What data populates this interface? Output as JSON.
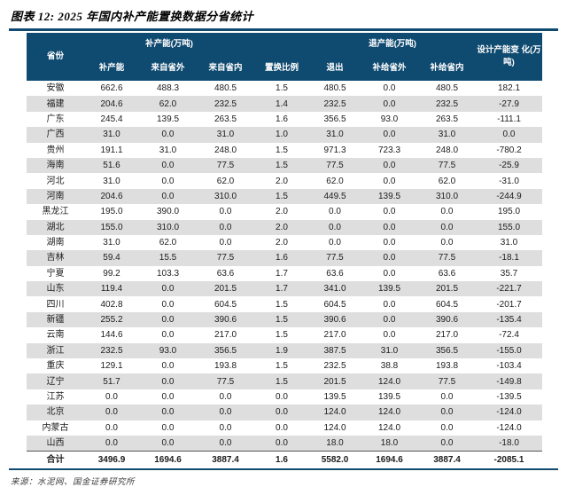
{
  "title": "图表 12: 2025 年国内补产能置换数据分省统计",
  "colors": {
    "header_bg": "#0f4a70",
    "rule": "#0f4a70",
    "stripe": "#dedede"
  },
  "table": {
    "header": {
      "province": "省份",
      "group_add": "补产能(万吨)",
      "group_retire": "退产能(万吨)",
      "design_change": "设计产能变 化(万吨)"
    },
    "sub_headers": [
      "补产能",
      "来自省外",
      "来自省内",
      "置换比例",
      "退出",
      "补给省外",
      "补给省内"
    ],
    "rows": [
      {
        "province": "安徽",
        "values": [
          "662.6",
          "488.3",
          "480.5",
          "1.5",
          "480.5",
          "0.0",
          "480.5",
          "182.1"
        ]
      },
      {
        "province": "福建",
        "values": [
          "204.6",
          "62.0",
          "232.5",
          "1.4",
          "232.5",
          "0.0",
          "232.5",
          "-27.9"
        ]
      },
      {
        "province": "广东",
        "values": [
          "245.4",
          "139.5",
          "263.5",
          "1.6",
          "356.5",
          "93.0",
          "263.5",
          "-111.1"
        ]
      },
      {
        "province": "广西",
        "values": [
          "31.0",
          "0.0",
          "31.0",
          "1.0",
          "31.0",
          "0.0",
          "31.0",
          "0.0"
        ]
      },
      {
        "province": "贵州",
        "values": [
          "191.1",
          "31.0",
          "248.0",
          "1.5",
          "971.3",
          "723.3",
          "248.0",
          "-780.2"
        ]
      },
      {
        "province": "海南",
        "values": [
          "51.6",
          "0.0",
          "77.5",
          "1.5",
          "77.5",
          "0.0",
          "77.5",
          "-25.9"
        ]
      },
      {
        "province": "河北",
        "values": [
          "31.0",
          "0.0",
          "62.0",
          "2.0",
          "62.0",
          "0.0",
          "62.0",
          "-31.0"
        ]
      },
      {
        "province": "河南",
        "values": [
          "204.6",
          "0.0",
          "310.0",
          "1.5",
          "449.5",
          "139.5",
          "310.0",
          "-244.9"
        ]
      },
      {
        "province": "黑龙江",
        "values": [
          "195.0",
          "390.0",
          "0.0",
          "2.0",
          "0.0",
          "0.0",
          "0.0",
          "195.0"
        ]
      },
      {
        "province": "湖北",
        "values": [
          "155.0",
          "310.0",
          "0.0",
          "2.0",
          "0.0",
          "0.0",
          "0.0",
          "155.0"
        ]
      },
      {
        "province": "湖南",
        "values": [
          "31.0",
          "62.0",
          "0.0",
          "2.0",
          "0.0",
          "0.0",
          "0.0",
          "31.0"
        ]
      },
      {
        "province": "吉林",
        "values": [
          "59.4",
          "15.5",
          "77.5",
          "1.6",
          "77.5",
          "0.0",
          "77.5",
          "-18.1"
        ]
      },
      {
        "province": "宁夏",
        "values": [
          "99.2",
          "103.3",
          "63.6",
          "1.7",
          "63.6",
          "0.0",
          "63.6",
          "35.7"
        ]
      },
      {
        "province": "山东",
        "values": [
          "119.4",
          "0.0",
          "201.5",
          "1.7",
          "341.0",
          "139.5",
          "201.5",
          "-221.7"
        ]
      },
      {
        "province": "四川",
        "values": [
          "402.8",
          "0.0",
          "604.5",
          "1.5",
          "604.5",
          "0.0",
          "604.5",
          "-201.7"
        ]
      },
      {
        "province": "新疆",
        "values": [
          "255.2",
          "0.0",
          "390.6",
          "1.5",
          "390.6",
          "0.0",
          "390.6",
          "-135.4"
        ]
      },
      {
        "province": "云南",
        "values": [
          "144.6",
          "0.0",
          "217.0",
          "1.5",
          "217.0",
          "0.0",
          "217.0",
          "-72.4"
        ]
      },
      {
        "province": "浙江",
        "values": [
          "232.5",
          "93.0",
          "356.5",
          "1.9",
          "387.5",
          "31.0",
          "356.5",
          "-155.0"
        ]
      },
      {
        "province": "重庆",
        "values": [
          "129.1",
          "0.0",
          "193.8",
          "1.5",
          "232.5",
          "38.8",
          "193.8",
          "-103.4"
        ]
      },
      {
        "province": "辽宁",
        "values": [
          "51.7",
          "0.0",
          "77.5",
          "1.5",
          "201.5",
          "124.0",
          "77.5",
          "-149.8"
        ]
      },
      {
        "province": "江苏",
        "values": [
          "0.0",
          "0.0",
          "0.0",
          "0.0",
          "139.5",
          "139.5",
          "0.0",
          "-139.5"
        ]
      },
      {
        "province": "北京",
        "values": [
          "0.0",
          "0.0",
          "0.0",
          "0.0",
          "124.0",
          "124.0",
          "0.0",
          "-124.0"
        ]
      },
      {
        "province": "内蒙古",
        "values": [
          "0.0",
          "0.0",
          "0.0",
          "0.0",
          "124.0",
          "124.0",
          "0.0",
          "-124.0"
        ]
      },
      {
        "province": "山西",
        "values": [
          "0.0",
          "0.0",
          "0.0",
          "0.0",
          "18.0",
          "18.0",
          "0.0",
          "-18.0"
        ]
      }
    ],
    "total": {
      "label": "合计",
      "values": [
        "3496.9",
        "1694.6",
        "3887.4",
        "1.6",
        "5582.0",
        "1694.6",
        "3887.4",
        "-2085.1"
      ]
    }
  },
  "footer": {
    "source": "来源：水泥网、国金证券研究所"
  }
}
